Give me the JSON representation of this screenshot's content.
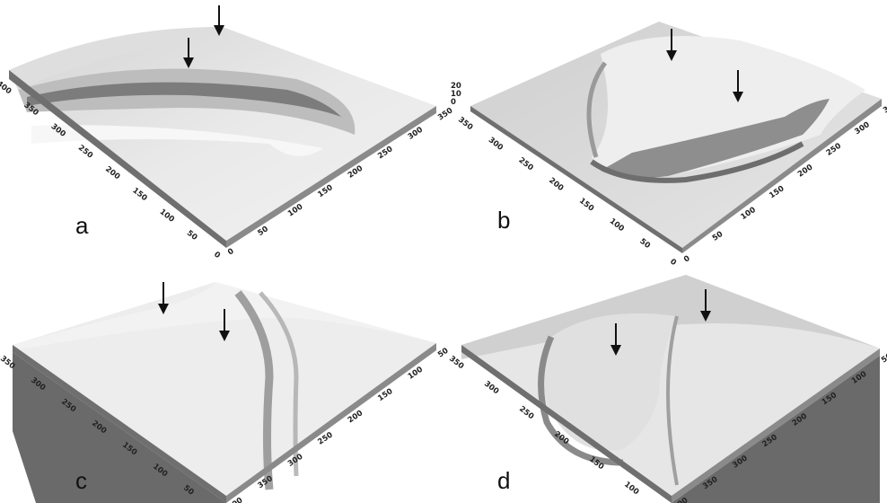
{
  "panels": [
    {
      "id": "a",
      "label": "a",
      "front_left_ticks": [
        "0",
        "50",
        "100",
        "150",
        "200",
        "250",
        "300",
        "350",
        "400"
      ],
      "front_right_ticks": [
        "0",
        "50",
        "100",
        "150",
        "200",
        "250",
        "300",
        "350"
      ],
      "z_ticks": []
    },
    {
      "id": "b",
      "label": "b",
      "front_left_ticks": [
        "0",
        "50",
        "100",
        "150",
        "200",
        "250",
        "300",
        "350"
      ],
      "front_right_ticks": [
        "0",
        "50",
        "100",
        "150",
        "200",
        "250",
        "300",
        "350"
      ],
      "z_ticks": [
        "0",
        "10",
        "20"
      ]
    },
    {
      "id": "c",
      "label": "c",
      "front_left_ticks": [
        "0",
        "50",
        "100",
        "150",
        "200",
        "250",
        "300",
        "350"
      ],
      "front_right_ticks": [
        "400",
        "350",
        "300",
        "250",
        "200",
        "150",
        "100",
        "50"
      ],
      "z_ticks": []
    },
    {
      "id": "d",
      "label": "d",
      "front_left_ticks": [
        "50",
        "100",
        "150",
        "200",
        "250",
        "300",
        "350"
      ],
      "front_right_ticks": [
        "400",
        "350",
        "300",
        "250",
        "200",
        "150",
        "100",
        "50"
      ],
      "z_ticks": []
    }
  ],
  "colors": {
    "surface_light": "#ececec",
    "surface_mid": "#d9d9d9",
    "ridge_dark": "#7a7a7a",
    "side_wall": "#6f6f6f",
    "background": "#ffffff"
  },
  "icons": [
    "down-arrow-icon"
  ]
}
